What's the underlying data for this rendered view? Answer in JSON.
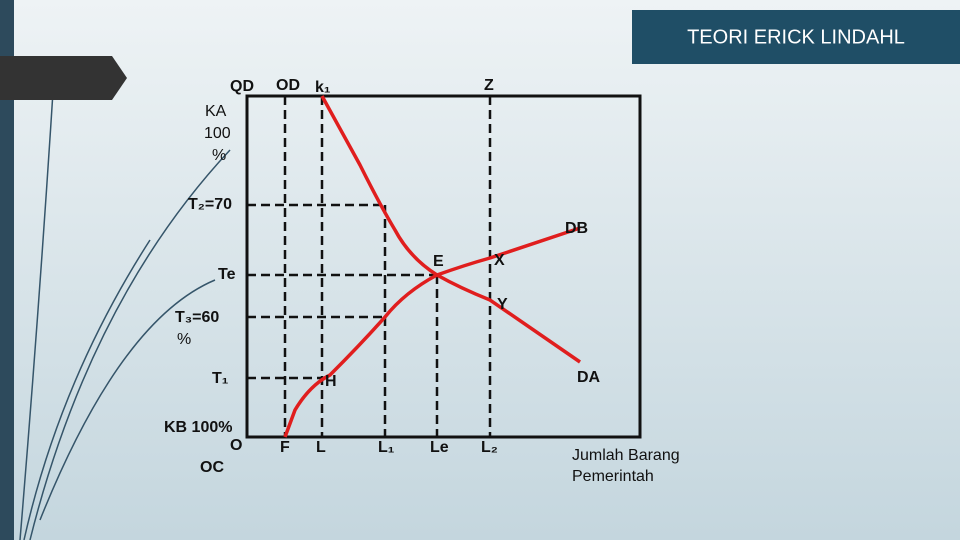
{
  "header": {
    "title": "TEORI ERICK LINDAHL"
  },
  "labels": [
    "QD",
    "OD",
    "k₁",
    "Z",
    "KA",
    "100",
    "%",
    "T₂=70",
    "DB",
    "Te",
    "E",
    "X",
    "Y",
    "T₃=60",
    "%",
    "T₁",
    "H",
    "DA",
    "KB 100%",
    "O",
    "OC",
    "F",
    "L",
    "L₁",
    "Le",
    "L₂",
    "Jumlah Barang",
    "Pemerintah"
  ]
}
